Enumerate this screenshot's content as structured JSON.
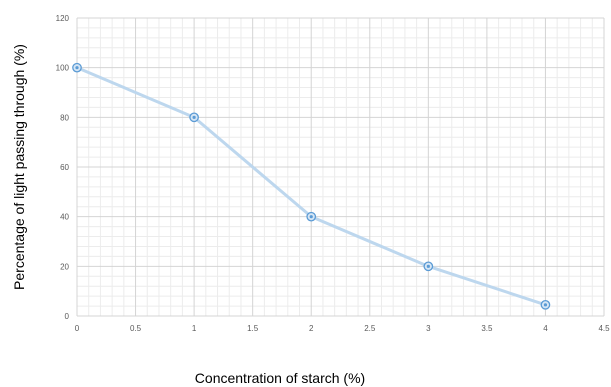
{
  "chart_data": {
    "type": "line",
    "xlabel": "Concentration of starch (%)",
    "ylabel": "Percentage of light passing through (%)",
    "xlim": [
      0,
      4.5
    ],
    "ylim": [
      0,
      120
    ],
    "x_ticks": [
      "0",
      "0.5",
      "1",
      "1.5",
      "2",
      "2.5",
      "3",
      "3.5",
      "4",
      "4.5"
    ],
    "y_ticks": [
      "0",
      "20",
      "40",
      "60",
      "80",
      "100",
      "120"
    ],
    "x_tick_values": [
      0,
      0.5,
      1,
      1.5,
      2,
      2.5,
      3,
      3.5,
      4,
      4.5
    ],
    "y_tick_values": [
      0,
      20,
      40,
      60,
      80,
      100,
      120
    ],
    "grid": true,
    "minor_grid": true,
    "series": [
      {
        "x": [
          0,
          1,
          2,
          3,
          4
        ],
        "y": [
          100,
          80,
          40,
          20,
          4.5
        ],
        "color": "#bdd7ee",
        "marker_color": "#5b9bd5"
      }
    ]
  }
}
